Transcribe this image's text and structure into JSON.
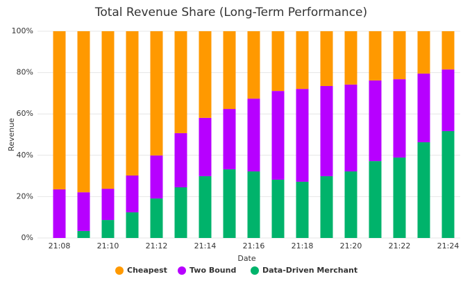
{
  "chart_data": {
    "type": "stacked_bar",
    "title": "Total Revenue Share (Long-Term Performance)",
    "x_label": "Date",
    "y_label": "Revenue",
    "categories": [
      "21:08",
      null,
      "21:10",
      null,
      "21:12",
      null,
      "21:14",
      null,
      "21:16",
      null,
      "21:18",
      null,
      "21:20",
      null,
      "21:22",
      null,
      "21:24"
    ],
    "series": [
      {
        "name": "Cheapest",
        "color": "#ff9900",
        "values": [
          76.5,
          77.9,
          76.2,
          69.8,
          60.1,
          49.3,
          41.9,
          37.6,
          32.6,
          28.9,
          27.9,
          26.5,
          25.8,
          23.8,
          23.2,
          20.5,
          18.5
        ]
      },
      {
        "name": "Two Bound",
        "color": "#b700ff",
        "values": [
          23.5,
          18.7,
          15.1,
          17.8,
          20.8,
          26.2,
          28.2,
          29.2,
          35.2,
          42.9,
          44.9,
          43.6,
          42.0,
          39.0,
          37.9,
          33.2,
          29.8
        ]
      },
      {
        "name": "Data-Driven Merchant",
        "color": "#00b36b",
        "values": [
          0,
          3.4,
          8.7,
          12.4,
          19.1,
          24.5,
          29.9,
          33.2,
          32.2,
          28.2,
          27.2,
          29.9,
          32.2,
          37.2,
          38.9,
          46.3,
          51.7
        ]
      }
    ],
    "ylim": [
      0,
      100
    ],
    "yticks": [
      {
        "value": 0,
        "label": "0%"
      },
      {
        "value": 20,
        "label": "20%"
      },
      {
        "value": 40,
        "label": "40%"
      },
      {
        "value": 60,
        "label": "60%"
      },
      {
        "value": 80,
        "label": "80%"
      },
      {
        "value": 100,
        "label": "100%"
      }
    ],
    "grid": true
  }
}
